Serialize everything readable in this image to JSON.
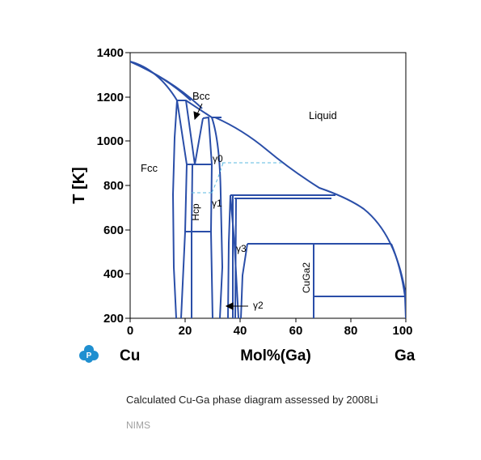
{
  "figure": {
    "caption": "Calculated Cu-Ga phase diagram assessed by 2008Li",
    "source": "NIMS",
    "left_element": "Cu",
    "right_element": "Ga",
    "xlabel": "Mol%(Ga)",
    "ylabel": "T [K]",
    "logo_icon": "pauling-file-logo-icon",
    "line_color": "#2a4ea8",
    "dashed_color": "#5bb8e0",
    "logo_color": "#1f8fd0"
  },
  "axes": {
    "x_range": [
      0,
      100
    ],
    "y_range": [
      200,
      1400
    ],
    "x_ticks": [
      "0",
      "20",
      "40",
      "60",
      "80",
      "100"
    ],
    "y_ticks": [
      "200",
      "400",
      "600",
      "800",
      "1000",
      "1200",
      "1400"
    ]
  },
  "phase_labels": {
    "liquid": "Liquid",
    "bcc": "Bcc",
    "fcc": "Fcc",
    "hcp": "Hcp",
    "gamma0": "γ0",
    "gamma1": "γ1",
    "gamma2": "γ2",
    "gamma3": "γ3",
    "cuga2": "CuGa2"
  }
}
